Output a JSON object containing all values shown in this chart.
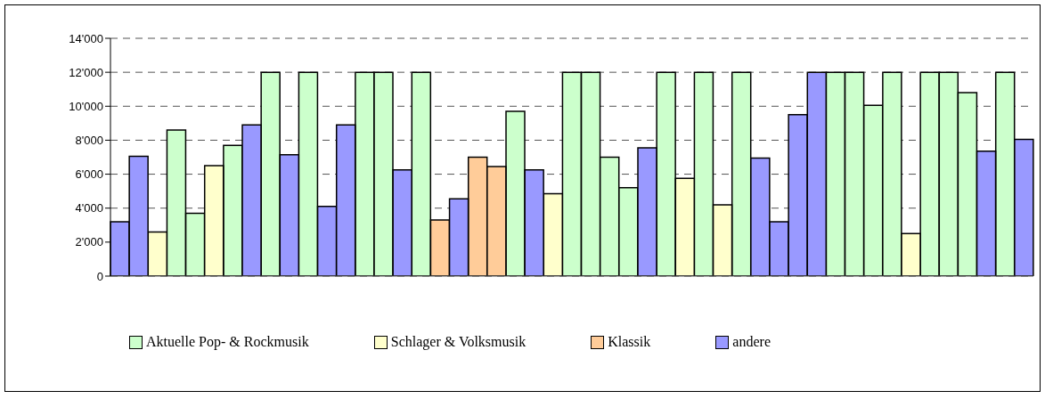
{
  "chart_data": {
    "type": "bar",
    "stacked": true,
    "categories": [
      null,
      null,
      null,
      null,
      null,
      null,
      null,
      null,
      null,
      null,
      null,
      null,
      null,
      null,
      null,
      null,
      null,
      null,
      null,
      null,
      null,
      null,
      null,
      null,
      null,
      null,
      null,
      null,
      null,
      null,
      null,
      null,
      null,
      null,
      null,
      null,
      null,
      null,
      null,
      null,
      null,
      null,
      null,
      null,
      null,
      null,
      null,
      null,
      null
    ],
    "series": [
      {
        "name": "Aktuelle Pop- & Rockmusik",
        "color": "#ccffcc",
        "values": [
          null,
          null,
          null,
          8600,
          3700,
          null,
          7700,
          null,
          12000,
          null,
          12000,
          null,
          null,
          12000,
          12000,
          null,
          12000,
          null,
          null,
          null,
          null,
          9700,
          null,
          null,
          12000,
          12000,
          7000,
          5200,
          null,
          12000,
          null,
          12000,
          null,
          12000,
          null,
          null,
          null,
          null,
          12000,
          12000,
          10050,
          12000,
          null,
          12000,
          12000,
          10800,
          null,
          12000,
          null
        ]
      },
      {
        "name": "Schlager & Volksmusik",
        "color": "#ffffcc",
        "values": [
          null,
          null,
          2600,
          null,
          null,
          6500,
          null,
          null,
          null,
          null,
          null,
          null,
          null,
          null,
          null,
          null,
          null,
          null,
          null,
          null,
          null,
          null,
          null,
          4850,
          null,
          null,
          null,
          null,
          null,
          null,
          5750,
          null,
          4200,
          null,
          null,
          null,
          null,
          null,
          null,
          null,
          null,
          null,
          2500,
          null,
          null,
          null,
          null,
          null,
          null
        ]
      },
      {
        "name": "Klassik",
        "color": "#ffcc99",
        "values": [
          null,
          null,
          null,
          null,
          null,
          null,
          null,
          null,
          null,
          null,
          null,
          null,
          null,
          null,
          null,
          null,
          null,
          3300,
          null,
          7000,
          6450,
          null,
          null,
          null,
          null,
          null,
          null,
          null,
          null,
          null,
          null,
          null,
          null,
          null,
          null,
          null,
          null,
          null,
          null,
          null,
          null,
          null,
          null,
          null,
          null,
          null,
          null,
          null,
          null
        ]
      },
      {
        "name": "andere",
        "color": "#9999ff",
        "values": [
          3200,
          7050,
          null,
          null,
          null,
          null,
          null,
          8900,
          null,
          7150,
          null,
          4100,
          8900,
          null,
          null,
          6250,
          null,
          null,
          4550,
          null,
          null,
          null,
          6250,
          null,
          null,
          null,
          null,
          null,
          7550,
          null,
          null,
          null,
          null,
          null,
          6950,
          3200,
          9500,
          12000,
          null,
          null,
          null,
          null,
          null,
          null,
          null,
          null,
          7350,
          null,
          8050
        ]
      }
    ],
    "ylim": [
      0,
      14000
    ],
    "yticks": [
      {
        "value": 0,
        "label": "0"
      },
      {
        "value": 2000,
        "label": "2'000"
      },
      {
        "value": 4000,
        "label": "4'000"
      },
      {
        "value": 6000,
        "label": "6'000"
      },
      {
        "value": 8000,
        "label": "8'000"
      },
      {
        "value": 10000,
        "label": "10'000"
      },
      {
        "value": 12000,
        "label": "12'000"
      },
      {
        "value": 14000,
        "label": "14'000"
      }
    ],
    "grid": "y",
    "legend": "bottom"
  }
}
